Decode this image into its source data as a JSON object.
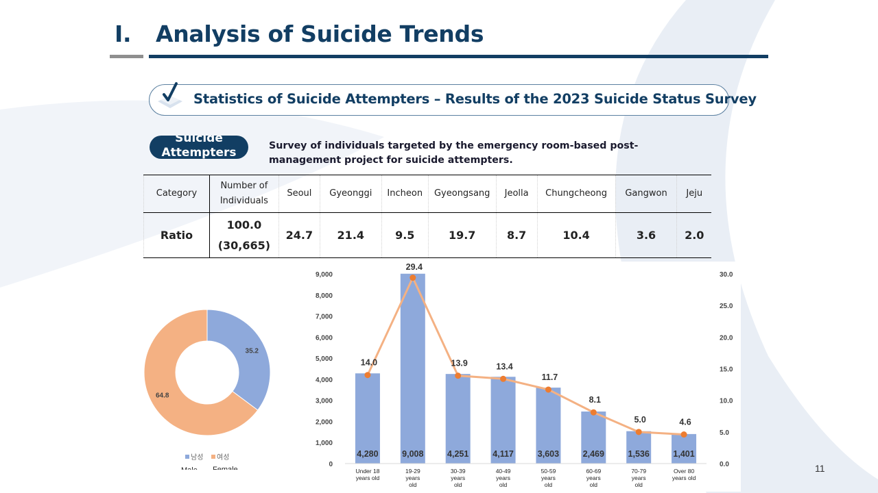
{
  "slide": {
    "section_number": "I.",
    "title": "Analysis of Suicide Trends",
    "subtitle": "Statistics of Suicide Attempters – Results of the 2023 Suicide Status Survey",
    "badge": "Suicide Attempters",
    "description": "Survey of individuals targeted by the emergency room-based post-management project for suicide attempters.",
    "page_number": "11"
  },
  "colors": {
    "navy": "#123e63",
    "bar_blue": "#8ea9db",
    "line_orange": "#f4b183",
    "marker_orange": "#ed7d31",
    "donut_male": "#8ea9db",
    "donut_female": "#f4b183"
  },
  "table": {
    "headers": [
      "Category",
      "Number of Individuals",
      "Seoul",
      "Gyeonggi",
      "Incheon",
      "Gyeongsang",
      "Jeolla",
      "Chungcheong",
      "Gangwon",
      "Jeju"
    ],
    "row_label": "Ratio",
    "total_ratio": "100.0",
    "total_count": "(30,665)",
    "values": [
      "24.7",
      "21.4",
      "9.5",
      "19.7",
      "8.7",
      "10.4",
      "3.6",
      "2.0"
    ]
  },
  "chart_data": [
    {
      "type": "pie",
      "subtype": "donut",
      "labels": [
        "남성",
        "여성"
      ],
      "labels_en": [
        "Male",
        "Female"
      ],
      "values": [
        35.2,
        64.8
      ]
    },
    {
      "type": "bar",
      "categories": [
        "Under 18 years old",
        "19-29 years old",
        "30-39 years old",
        "40-49 years old",
        "50-59 years old",
        "60-69 years old",
        "70-79 years old",
        "Over 80 years old"
      ],
      "series": [
        {
          "name": "Number of individuals",
          "kind": "bar",
          "axis": "left",
          "values": [
            4280,
            9008,
            4251,
            4117,
            3603,
            2469,
            1536,
            1401
          ],
          "value_labels": [
            "4,280",
            "9,008",
            "4,251",
            "4,117",
            "3,603",
            "2,469",
            "1,536",
            "1,401"
          ]
        },
        {
          "name": "Ratio",
          "kind": "line",
          "axis": "right",
          "values": [
            14.0,
            29.4,
            13.9,
            13.4,
            11.7,
            8.1,
            5.0,
            4.6
          ],
          "value_labels": [
            "14.0",
            "29.4",
            "13.9",
            "13.4",
            "11.7",
            "8.1",
            "5.0",
            "4.6"
          ]
        }
      ],
      "y_left": {
        "min": 0,
        "max": 9000,
        "ticks": [
          0,
          1000,
          2000,
          3000,
          4000,
          5000,
          6000,
          7000,
          8000,
          9000
        ],
        "tick_labels": [
          "0",
          "1,000",
          "2,000",
          "3,000",
          "4,000",
          "5,000",
          "6,000",
          "7,000",
          "8,000",
          "9,000"
        ]
      },
      "y_right": {
        "min": 0,
        "max": 30,
        "ticks": [
          0,
          5,
          10,
          15,
          20,
          25,
          30
        ],
        "tick_labels": [
          "0.0",
          "5.0",
          "10.0",
          "15.0",
          "20.0",
          "25.0",
          "30.0"
        ]
      },
      "x_labels": [
        [
          "Under 18",
          "years old"
        ],
        [
          "19-29",
          "years",
          "old"
        ],
        [
          "30-39",
          "years",
          "old"
        ],
        [
          "40-49",
          "years",
          "old"
        ],
        [
          "50-59",
          "years",
          "old"
        ],
        [
          "60-69",
          "years",
          "old"
        ],
        [
          "70-79",
          "years",
          "old"
        ],
        [
          "Over 80",
          "years old"
        ]
      ],
      "grid": false
    }
  ]
}
